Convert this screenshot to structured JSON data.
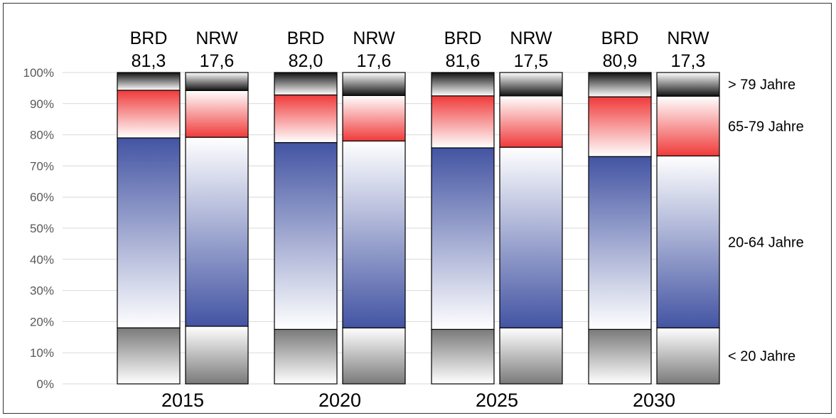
{
  "chart_data": {
    "type": "bar",
    "stacked": "percent",
    "categories": [
      "2015",
      "2020",
      "2025",
      "2030"
    ],
    "groups": [
      "BRD",
      "NRW"
    ],
    "totals": {
      "BRD": [
        "81,3",
        "82,0",
        "81,6",
        "80,9"
      ],
      "NRW": [
        "17,6",
        "17,6",
        "17,5",
        "17,3"
      ]
    },
    "series": [
      {
        "name": "< 20 Jahre",
        "color": "#7a7a7a",
        "BRD": [
          18,
          17.5,
          17.5,
          17.5
        ],
        "NRW": [
          18.5,
          18,
          18,
          18
        ]
      },
      {
        "name": "20-64 Jahre",
        "color": "#4354a3",
        "BRD": [
          61,
          60,
          58.3,
          55.5
        ],
        "NRW": [
          60.7,
          60,
          58,
          55.2
        ]
      },
      {
        "name": "65-79 Jahre",
        "color": "#f03a3a",
        "BRD": [
          15.3,
          15.3,
          16.7,
          19.2
        ],
        "NRW": [
          15,
          14.6,
          16.5,
          19.2
        ]
      },
      {
        "name": "> 79 Jahre",
        "color": "#111111",
        "BRD": [
          5.7,
          7.2,
          7.5,
          7.8
        ],
        "NRW": [
          5.8,
          7.4,
          7.5,
          7.6
        ]
      }
    ],
    "yaxis": {
      "min": 0,
      "max": 100,
      "step": 10,
      "tick_labels": [
        "0%",
        "10%",
        "20%",
        "30%",
        "40%",
        "50%",
        "60%",
        "70%",
        "80%",
        "90%",
        "100%"
      ]
    },
    "grid": true,
    "legend": "right"
  }
}
